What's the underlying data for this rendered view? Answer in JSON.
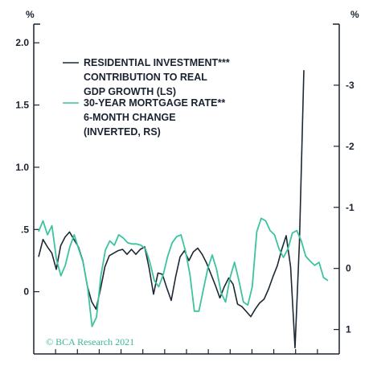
{
  "chart_data": {
    "type": "line",
    "left_axis": {
      "unit": "%",
      "ylim": [
        -0.5,
        2.15
      ],
      "ticks": [
        {
          "value": 2.0,
          "label": "2.0"
        },
        {
          "value": 1.5,
          "label": "1.5"
        },
        {
          "value": 1.0,
          "label": "1.0"
        },
        {
          "value": 0.5,
          "label": ".5"
        },
        {
          "value": 0.0,
          "label": "0"
        }
      ]
    },
    "right_axis": {
      "unit": "%",
      "inverted": true,
      "ylim": [
        1.4,
        -4.0
      ],
      "ticks": [
        {
          "value": -3,
          "label": "-3"
        },
        {
          "value": -2,
          "label": "-2"
        },
        {
          "value": -1,
          "label": "-1"
        },
        {
          "value": 0,
          "label": "0"
        },
        {
          "value": 1,
          "label": "1"
        }
      ]
    },
    "x_tick_count": 13,
    "series": [
      {
        "name": "RESIDENTIAL INVESTMENT*** CONTRIBUTION TO REAL GDP GROWTH (LS)",
        "axis": "left",
        "color": "#1c2833",
        "values": [
          0.28,
          0.42,
          0.36,
          0.31,
          0.18,
          0.37,
          0.44,
          0.48,
          0.42,
          0.36,
          0.25,
          0.05,
          -0.08,
          -0.14,
          0.02,
          0.2,
          0.29,
          0.31,
          0.33,
          0.34,
          0.3,
          0.34,
          0.3,
          0.34,
          0.36,
          0.19,
          -0.02,
          0.15,
          0.14,
          0.03,
          -0.07,
          0.12,
          0.28,
          0.33,
          0.25,
          0.32,
          0.35,
          0.3,
          0.23,
          0.14,
          0.05,
          -0.05,
          0.04,
          0.11,
          0.06,
          -0.1,
          -0.12,
          -0.16,
          -0.2,
          -0.14,
          -0.09,
          -0.06,
          0.02,
          0.12,
          0.21,
          0.34,
          0.45,
          0.2,
          -0.45,
          0.4,
          1.78
        ]
      },
      {
        "name": "30-YEAR MORTGAGE RATE** 6-MONTH CHANGE (INVERTED, RS)",
        "axis": "right",
        "color": "#3cc3a0",
        "values": [
          -0.6,
          -0.78,
          -0.55,
          -0.7,
          -0.15,
          0.12,
          -0.05,
          -0.35,
          -0.55,
          -0.32,
          -0.1,
          0.3,
          0.95,
          0.8,
          0.12,
          -0.3,
          -0.45,
          -0.38,
          -0.55,
          -0.5,
          -0.42,
          -0.4,
          -0.4,
          -0.38,
          -0.32,
          -0.1,
          0.2,
          0.3,
          0.1,
          -0.2,
          -0.42,
          -0.52,
          -0.55,
          -0.28,
          0.1,
          0.7,
          0.7,
          0.35,
          0.0,
          -0.22,
          0.02,
          0.4,
          0.55,
          0.15,
          -0.1,
          0.2,
          0.55,
          0.6,
          0.3,
          -0.6,
          -0.82,
          -0.78,
          -0.62,
          -0.55,
          -0.32,
          -0.18,
          -0.32,
          -0.58,
          -0.62,
          -0.45,
          -0.2,
          -0.12,
          -0.05,
          -0.1,
          0.15,
          0.2
        ]
      }
    ],
    "legend": {
      "placement": "top-left",
      "entries": [
        {
          "lines": [
            "RESIDENTIAL INVESTMENT***",
            "CONTRIBUTION TO REAL",
            "GDP GROWTH (LS)"
          ],
          "color": "#1c2833"
        },
        {
          "lines": [
            "30-YEAR MORTGAGE RATE**",
            "6-MONTH CHANGE",
            "(INVERTED, RS)"
          ],
          "color": "#3cc3a0"
        }
      ]
    },
    "watermark": "© BCΑ Research 2021"
  }
}
